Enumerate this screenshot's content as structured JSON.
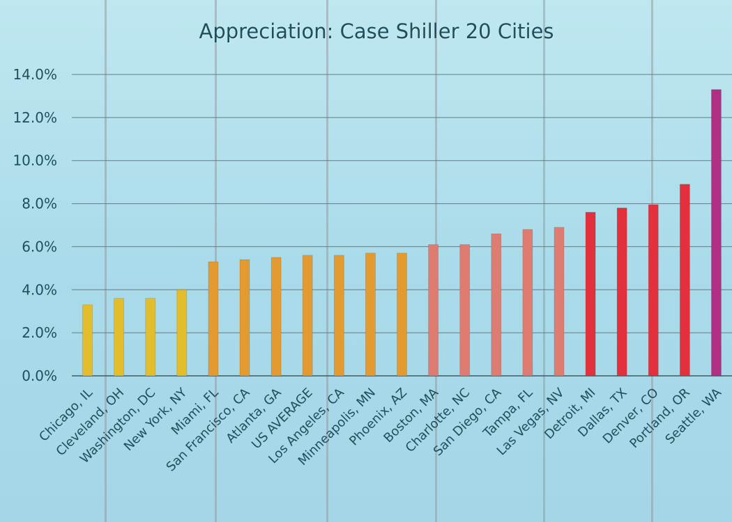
{
  "chart_data": {
    "type": "bar",
    "title": "Appreciation: Case Shiller 20 Cities",
    "xlabel": "",
    "ylabel": "",
    "ylim": [
      0,
      14
    ],
    "y_ticks": [
      "0.0%",
      "2.0%",
      "4.0%",
      "6.0%",
      "8.0%",
      "10.0%",
      "12.0%",
      "14.0%"
    ],
    "grid": true,
    "categories": [
      "Chicago, IL",
      "Cleveland, OH",
      "Washington, DC",
      "New York, NY",
      "Miami, FL",
      "San Francisco, CA",
      "Atlanta, GA",
      "US AVERAGE",
      "Los Angeles, CA",
      "Minneapolis, MN",
      "Phoenix, AZ",
      "Boston, MA",
      "Charlotte, NC",
      "San Diego, CA",
      "Tampa, FL",
      "Las Vegas, NV",
      "Detroit, MI",
      "Dallas, TX",
      "Denver, CO",
      "Portland, OR",
      "Seattle, WA"
    ],
    "values": [
      3.3,
      3.6,
      3.6,
      4.0,
      5.3,
      5.4,
      5.5,
      5.6,
      5.6,
      5.7,
      5.7,
      6.1,
      6.1,
      6.6,
      6.8,
      6.9,
      7.6,
      7.8,
      7.95,
      8.9,
      13.3
    ],
    "bar_colors": [
      "#e3bd2c",
      "#e3bd2c",
      "#e3bd2c",
      "#e3bd2c",
      "#e39a31",
      "#e39a31",
      "#e39a31",
      "#e39a31",
      "#e39a31",
      "#e39a31",
      "#e39a31",
      "#df7c72",
      "#df7c72",
      "#df7c72",
      "#df7c72",
      "#df7c72",
      "#e2313d",
      "#e2313d",
      "#e2313d",
      "#e2313d",
      "#b02f84"
    ]
  }
}
